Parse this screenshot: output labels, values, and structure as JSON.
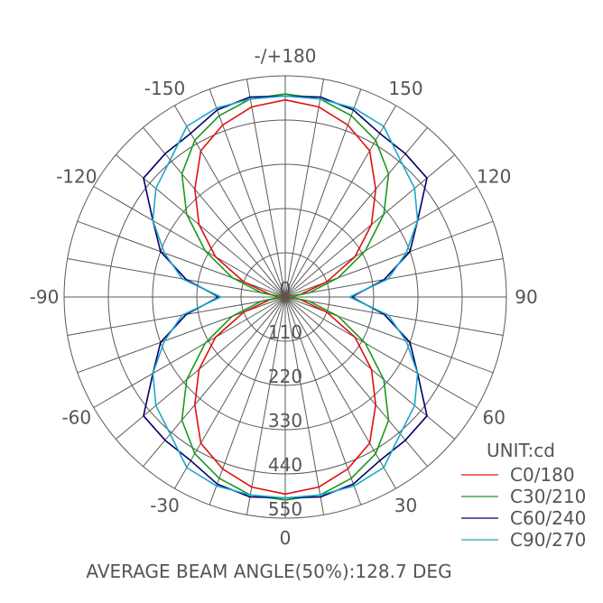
{
  "chart_data": {
    "type": "polar-line",
    "title": "AVERAGE BEAM ANGLE(50%):128.7 DEG",
    "unit_label": "UNIT:cd",
    "radial_ticks": [
      110,
      220,
      330,
      440,
      550
    ],
    "radial_range": [
      0,
      550
    ],
    "center_label": "0",
    "angle_labels": [
      {
        "angle": 0,
        "text": "0"
      },
      {
        "angle": 30,
        "text": "30"
      },
      {
        "angle": 60,
        "text": "60"
      },
      {
        "angle": 90,
        "text": "90"
      },
      {
        "angle": 120,
        "text": "120"
      },
      {
        "angle": 150,
        "text": "150"
      },
      {
        "angle": 180,
        "text": "-/+180"
      },
      {
        "angle": -150,
        "text": "-150"
      },
      {
        "angle": -120,
        "text": "-120"
      },
      {
        "angle": -90,
        "text": "-90"
      },
      {
        "angle": -60,
        "text": "-60"
      },
      {
        "angle": -30,
        "text": "-30"
      }
    ],
    "angle_grid_step": 10,
    "angles": [
      -180,
      -170,
      -160,
      -150,
      -140,
      -130,
      -120,
      -110,
      -100,
      -90,
      -80,
      -70,
      -60,
      -50,
      -40,
      -30,
      -20,
      -10,
      0,
      10,
      20,
      30,
      40,
      50,
      60,
      70,
      80,
      90,
      100,
      110,
      120,
      130,
      140,
      150,
      160,
      170,
      180
    ],
    "series": [
      {
        "name": "C0/180",
        "color": "#e01010",
        "values": [
          490,
          480,
          455,
          420,
          350,
          280,
          200,
          110,
          40,
          5,
          40,
          110,
          200,
          280,
          350,
          420,
          455,
          480,
          490,
          480,
          455,
          420,
          350,
          280,
          200,
          110,
          40,
          5,
          40,
          110,
          200,
          280,
          350,
          420,
          455,
          480,
          490
        ]
      },
      {
        "name": "C30/210",
        "color": "#1a9a1a",
        "values": [
          505,
          500,
          480,
          450,
          400,
          320,
          230,
          140,
          60,
          10,
          60,
          140,
          230,
          320,
          400,
          450,
          480,
          500,
          505,
          500,
          480,
          450,
          400,
          320,
          230,
          140,
          60,
          10,
          60,
          140,
          230,
          320,
          400,
          450,
          480,
          500,
          505
        ]
      },
      {
        "name": "C60/240",
        "color": "#000066",
        "values": [
          500,
          505,
          495,
          470,
          465,
          460,
          380,
          330,
          250,
          165,
          250,
          330,
          380,
          460,
          465,
          470,
          495,
          505,
          500,
          505,
          495,
          470,
          465,
          460,
          380,
          330,
          250,
          165,
          250,
          330,
          380,
          460,
          465,
          470,
          495,
          505,
          500
        ]
      },
      {
        "name": "C90/270",
        "color": "#1aa8cc",
        "values": [
          500,
          500,
          500,
          490,
          445,
          420,
          380,
          320,
          260,
          160,
          260,
          320,
          380,
          420,
          445,
          490,
          500,
          500,
          500,
          500,
          500,
          490,
          445,
          420,
          380,
          320,
          260,
          160,
          260,
          320,
          380,
          420,
          445,
          490,
          500,
          500,
          500
        ]
      }
    ],
    "legend_position": "bottom-right"
  }
}
